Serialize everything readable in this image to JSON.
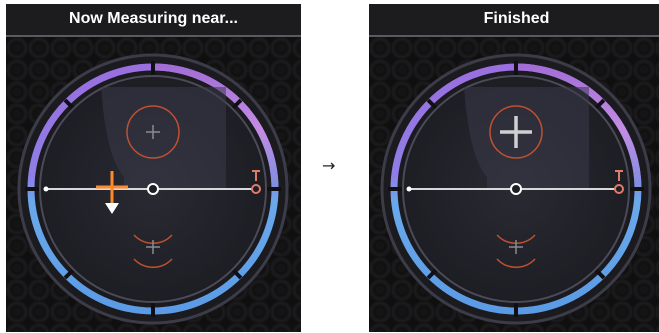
{
  "panels": [
    {
      "title": "Now Measuring near...",
      "state": "measuring",
      "colors": {
        "ring_arc": "#a56bd8",
        "ring_blue": "#6fa8e8",
        "accent": "#ff8a2b",
        "target_circle": "#c0502f"
      }
    },
    {
      "title": "Finished",
      "state": "finished",
      "colors": {
        "ring_arc": "#a56bd8",
        "ring_blue": "#6fa8e8",
        "accent": "#d0d0d0",
        "target_circle": "#c0502f"
      }
    }
  ],
  "transition_arrow": "→"
}
